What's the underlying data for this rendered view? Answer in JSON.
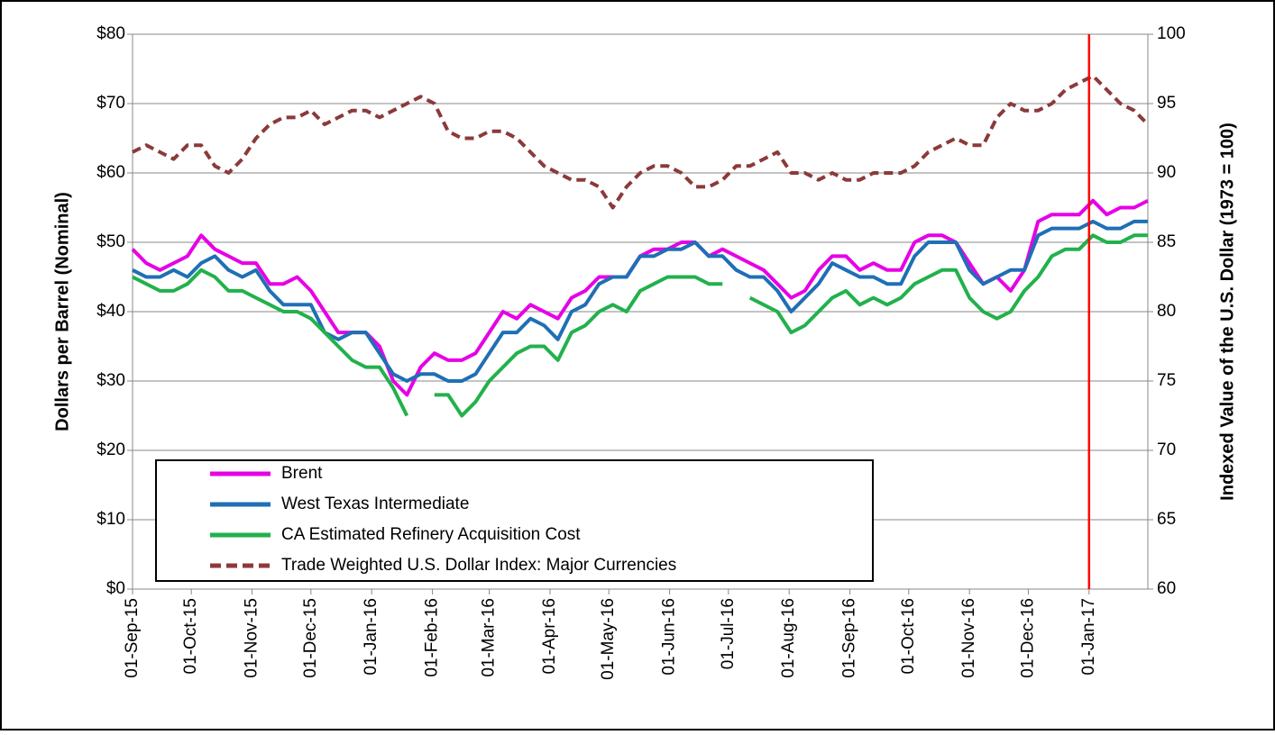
{
  "chart_data": {
    "type": "line",
    "y_label": "Dollars per Barrel (Nominal)",
    "y2_label": "Indexed Value of the U.S. Dollar (1973 = 100)",
    "x": [
      "2015-09-01",
      "2015-09-08",
      "2015-09-15",
      "2015-09-22",
      "2015-09-29",
      "2015-10-06",
      "2015-10-13",
      "2015-10-20",
      "2015-10-27",
      "2015-11-03",
      "2015-11-10",
      "2015-11-17",
      "2015-11-24",
      "2015-12-01",
      "2015-12-08",
      "2015-12-15",
      "2015-12-22",
      "2015-12-29",
      "2016-01-05",
      "2016-01-12",
      "2016-01-19",
      "2016-01-26",
      "2016-02-02",
      "2016-02-09",
      "2016-02-16",
      "2016-02-23",
      "2016-03-01",
      "2016-03-08",
      "2016-03-15",
      "2016-03-22",
      "2016-03-29",
      "2016-04-05",
      "2016-04-12",
      "2016-04-19",
      "2016-04-26",
      "2016-05-03",
      "2016-05-10",
      "2016-05-17",
      "2016-05-24",
      "2016-05-31",
      "2016-06-07",
      "2016-06-14",
      "2016-06-21",
      "2016-06-28",
      "2016-07-05",
      "2016-07-12",
      "2016-07-19",
      "2016-07-26",
      "2016-08-02",
      "2016-08-09",
      "2016-08-16",
      "2016-08-23",
      "2016-08-30",
      "2016-09-06",
      "2016-09-13",
      "2016-09-20",
      "2016-09-27",
      "2016-10-04",
      "2016-10-11",
      "2016-10-18",
      "2016-10-25",
      "2016-11-01",
      "2016-11-08",
      "2016-11-15",
      "2016-11-22",
      "2016-11-29",
      "2016-12-06",
      "2016-12-13",
      "2016-12-20",
      "2016-12-27",
      "2017-01-03",
      "2017-01-10",
      "2017-01-17",
      "2017-01-24",
      "2017-01-31"
    ],
    "xlim": [
      "2015-09-01",
      "2017-01-31"
    ],
    "xticks": [
      {
        "value": "2015-09-01",
        "label": "01-Sep-15"
      },
      {
        "value": "2015-10-01",
        "label": "01-Oct-15"
      },
      {
        "value": "2015-11-01",
        "label": "01-Nov-15"
      },
      {
        "value": "2015-12-01",
        "label": "01-Dec-15"
      },
      {
        "value": "2016-01-01",
        "label": "01-Jan-16"
      },
      {
        "value": "2016-02-01",
        "label": "01-Feb-16"
      },
      {
        "value": "2016-03-01",
        "label": "01-Mar-16"
      },
      {
        "value": "2016-04-01",
        "label": "01-Apr-16"
      },
      {
        "value": "2016-05-01",
        "label": "01-May-16"
      },
      {
        "value": "2016-06-01",
        "label": "01-Jun-16"
      },
      {
        "value": "2016-07-01",
        "label": "01-Jul-16"
      },
      {
        "value": "2016-08-01",
        "label": "01-Aug-16"
      },
      {
        "value": "2016-09-01",
        "label": "01-Sep-16"
      },
      {
        "value": "2016-10-01",
        "label": "01-Oct-16"
      },
      {
        "value": "2016-11-01",
        "label": "01-Nov-16"
      },
      {
        "value": "2016-12-01",
        "label": "01-Dec-16"
      },
      {
        "value": "2017-01-01",
        "label": "01-Jan-17"
      }
    ],
    "ylim": [
      0,
      80
    ],
    "yticks": [
      {
        "value": 0,
        "label": "$0"
      },
      {
        "value": 10,
        "label": "$10"
      },
      {
        "value": 20,
        "label": "$20"
      },
      {
        "value": 30,
        "label": "$30"
      },
      {
        "value": 40,
        "label": "$40"
      },
      {
        "value": 50,
        "label": "$50"
      },
      {
        "value": 60,
        "label": "$60"
      },
      {
        "value": 70,
        "label": "$70"
      },
      {
        "value": 80,
        "label": "$80"
      }
    ],
    "y2lim": [
      60,
      100
    ],
    "y2ticks": [
      60,
      65,
      70,
      75,
      80,
      85,
      90,
      95,
      100
    ],
    "grid": true,
    "legend": "lower-left",
    "reference_line": {
      "x": "2017-01-01",
      "color": "#ff0000"
    },
    "series": [
      {
        "name": "Brent",
        "color": "#e600e6",
        "values": [
          49,
          47,
          46,
          47,
          48,
          51,
          49,
          48,
          47,
          47,
          44,
          44,
          45,
          43,
          40,
          37,
          37,
          37,
          35,
          30,
          28,
          32,
          34,
          33,
          33,
          34,
          37,
          40,
          39,
          41,
          40,
          39,
          42,
          43,
          45,
          45,
          45,
          48,
          49,
          49,
          50,
          50,
          48,
          49,
          48,
          47,
          46,
          44,
          42,
          43,
          46,
          48,
          48,
          46,
          47,
          46,
          46,
          50,
          51,
          51,
          50,
          47,
          44,
          45,
          43,
          46,
          53,
          54,
          54,
          54,
          56,
          54,
          55,
          55,
          56
        ]
      },
      {
        "name": "West Texas Intermediate",
        "color": "#1f6fb5",
        "values": [
          46,
          45,
          45,
          46,
          45,
          47,
          48,
          46,
          45,
          46,
          43,
          41,
          41,
          41,
          37,
          36,
          37,
          37,
          34,
          31,
          30,
          31,
          31,
          30,
          30,
          31,
          34,
          37,
          37,
          39,
          38,
          36,
          40,
          41,
          44,
          45,
          45,
          48,
          48,
          49,
          49,
          50,
          48,
          48,
          46,
          45,
          45,
          43,
          40,
          42,
          44,
          47,
          46,
          45,
          45,
          44,
          44,
          48,
          50,
          50,
          50,
          46,
          44,
          45,
          46,
          46,
          51,
          52,
          52,
          52,
          53,
          52,
          52,
          53,
          53
        ]
      },
      {
        "name": "CA Estimated Refinery Acquisition Cost",
        "color": "#22b14c",
        "values": [
          45,
          44,
          43,
          43,
          44,
          46,
          45,
          43,
          43,
          42,
          41,
          40,
          40,
          39,
          37,
          35,
          33,
          32,
          32,
          29,
          25,
          null,
          28,
          28,
          25,
          27,
          30,
          32,
          34,
          35,
          35,
          33,
          37,
          38,
          40,
          41,
          40,
          43,
          44,
          45,
          45,
          45,
          44,
          44,
          null,
          42,
          41,
          40,
          37,
          38,
          40,
          42,
          43,
          41,
          42,
          41,
          42,
          44,
          45,
          46,
          46,
          42,
          40,
          39,
          40,
          43,
          45,
          48,
          49,
          49,
          51,
          50,
          50,
          51,
          51
        ]
      },
      {
        "name": "Trade Weighted U.S. Dollar Index: Major Currencies",
        "color": "#8b3a3a",
        "dash": true,
        "axis": "y2",
        "values": [
          91.5,
          92,
          91.5,
          91,
          92,
          92,
          90.5,
          90,
          91,
          92.5,
          93.5,
          94,
          94,
          94.5,
          93.5,
          94,
          94.5,
          94.5,
          94,
          94.5,
          95,
          95.5,
          95,
          93,
          92.5,
          92.5,
          93,
          93,
          92.5,
          91.5,
          90.5,
          90,
          89.5,
          89.5,
          89,
          87.5,
          89,
          90,
          90.5,
          90.5,
          90,
          89,
          89,
          89.5,
          90.5,
          90.5,
          91,
          91.5,
          90,
          90,
          89.5,
          90,
          89.5,
          89.5,
          90,
          90,
          90,
          90.5,
          91.5,
          92,
          92.5,
          92,
          92,
          94,
          95,
          94.5,
          94.5,
          95,
          96,
          96.5,
          97,
          96,
          95,
          94.5,
          93.5
        ]
      }
    ]
  }
}
